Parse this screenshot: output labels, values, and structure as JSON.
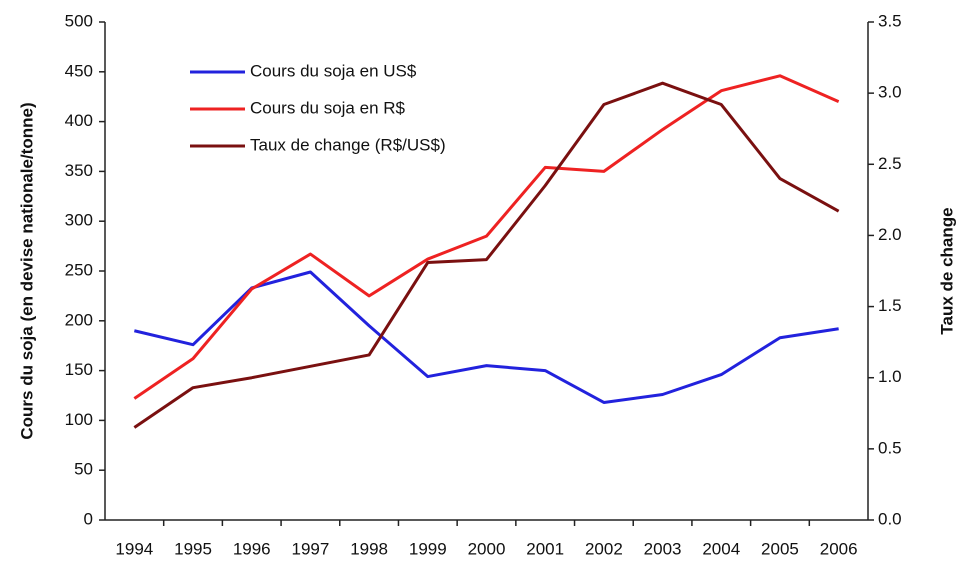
{
  "chart_data": {
    "type": "line",
    "categories": [
      "1994",
      "1995",
      "1996",
      "1997",
      "1998",
      "1999",
      "2000",
      "2001",
      "2002",
      "2003",
      "2004",
      "2005",
      "2006"
    ],
    "ylabel": "Cours du soja (en devise nationale/tonne)",
    "y2label": "Taux de change",
    "ylim": [
      0,
      500
    ],
    "yticks": [
      0,
      50,
      100,
      150,
      200,
      250,
      300,
      350,
      400,
      450,
      500
    ],
    "y2lim": [
      0,
      3.5
    ],
    "y2ticks": [
      {
        "value": 0,
        "label": "0.0"
      },
      0.5,
      {
        "value": 1,
        "label": "1.0"
      },
      1.5,
      {
        "value": 2,
        "label": "2.0"
      },
      2.5,
      {
        "value": 3,
        "label": "3.0"
      },
      3.5
    ],
    "legend": "upper left",
    "series": [
      {
        "name": "Cours du soja en US$",
        "color": "#2222dd",
        "values": [
          190,
          176,
          233,
          249,
          195,
          144,
          155,
          150,
          118,
          126,
          146,
          183,
          192
        ]
      },
      {
        "name": "Cours du soja en R$",
        "color": "#ee2222",
        "values": [
          122,
          162,
          232,
          267,
          225,
          262,
          285,
          354,
          350,
          392,
          431,
          446,
          420
        ]
      },
      {
        "name": "Taux de change (R$/US$)",
        "color": "#7a1010",
        "axis": "y2",
        "values": [
          0.65,
          0.93,
          1.0,
          1.08,
          1.16,
          1.81,
          1.83,
          2.35,
          2.92,
          3.07,
          2.92,
          2.4,
          2.17
        ]
      }
    ]
  }
}
